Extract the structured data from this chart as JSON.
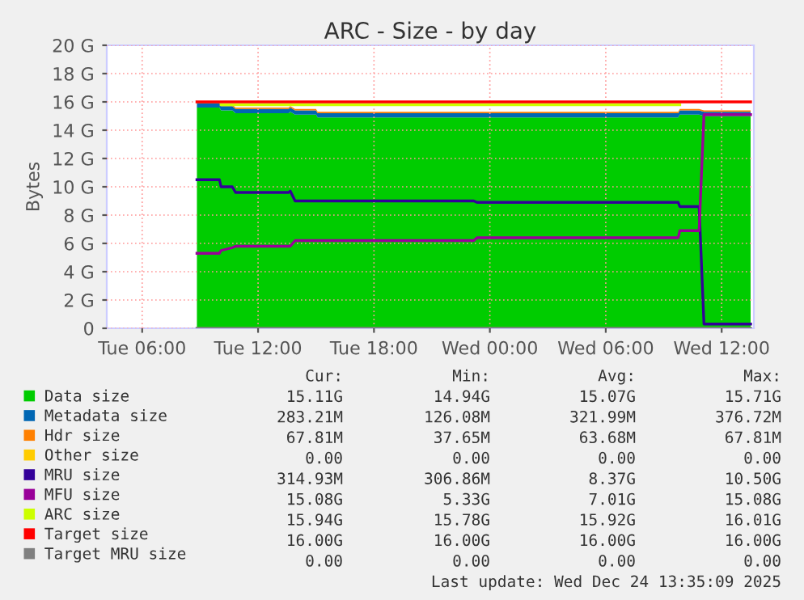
{
  "chart_data": {
    "type": "area",
    "title": "ARC - Size - by day",
    "ylabel": "Bytes",
    "stacked": true,
    "x": [
      "2025-12-23T08:50",
      "2025-12-23T10:00",
      "2025-12-23T10:05",
      "2025-12-23T10:40",
      "2025-12-23T10:50",
      "2025-12-23T13:35",
      "2025-12-23T13:40",
      "2025-12-23T13:55",
      "2025-12-23T15:00",
      "2025-12-23T15:05",
      "2025-12-23T23:10",
      "2025-12-23T23:20",
      "2025-12-24T09:45",
      "2025-12-24T09:50",
      "2025-12-24T10:50",
      "2025-12-24T11:05",
      "2025-12-24T13:30"
    ],
    "series": [
      {
        "name": "Data size",
        "color": "#00cc00",
        "values": [
          15.6,
          15.6,
          15.4,
          15.4,
          15.2,
          15.2,
          15.3,
          15.1,
          15.1,
          14.9,
          14.9,
          14.9,
          14.9,
          15.1,
          15.1,
          15.0,
          15.0
        ]
      },
      {
        "name": "Metadata size",
        "color": "#0066b3",
        "values": [
          0.3,
          0.3,
          0.3,
          0.3,
          0.3,
          0.3,
          0.3,
          0.3,
          0.3,
          0.3,
          0.3,
          0.3,
          0.3,
          0.3,
          0.3,
          0.3,
          0.3
        ]
      },
      {
        "name": "Hdr size",
        "color": "#ff8000",
        "values": [
          0.1,
          0.1,
          0.1,
          0.1,
          0.1,
          0.1,
          0.1,
          0.1,
          0.1,
          0.1,
          0.1,
          0.1,
          0.1,
          0.1,
          0.1,
          0.1,
          0.1
        ]
      },
      {
        "name": "Other size",
        "color": "#ffcc00",
        "values": [
          null,
          null,
          null,
          null,
          null,
          null,
          null,
          null,
          null,
          null,
          null,
          null,
          null,
          null,
          null,
          null,
          null
        ]
      },
      {
        "name": "MRU size",
        "type": "line",
        "color": "#330099",
        "values": [
          10.5,
          10.5,
          10.0,
          10.0,
          9.6,
          9.6,
          9.7,
          9.0,
          9.0,
          9.0,
          9.0,
          8.9,
          8.9,
          8.6,
          8.6,
          0.3,
          0.3
        ]
      },
      {
        "name": "MFU size",
        "type": "line",
        "color": "#990099",
        "values": [
          5.3,
          5.3,
          5.5,
          5.7,
          5.8,
          5.8,
          5.8,
          6.2,
          6.2,
          6.2,
          6.2,
          6.4,
          6.4,
          6.9,
          6.9,
          15.1,
          15.1
        ]
      },
      {
        "name": "ARC size",
        "type": "line",
        "color": "#ccff00",
        "values": [
          null,
          null,
          15.8,
          15.8,
          15.8,
          15.8,
          15.8,
          15.8,
          15.8,
          15.8,
          15.8,
          15.8,
          15.8,
          15.8,
          null,
          null,
          null
        ]
      },
      {
        "name": "Target size",
        "type": "line",
        "color": "#ff0000",
        "values": [
          16,
          16,
          16,
          16,
          16,
          16,
          16,
          16,
          16,
          16,
          16,
          16,
          16,
          16,
          16,
          16,
          16
        ]
      },
      {
        "name": "Target MRU size",
        "type": "line",
        "color": "#808080",
        "values": [
          0,
          0,
          0,
          0,
          0,
          0,
          0,
          0,
          0,
          0,
          0,
          0,
          0,
          0,
          0,
          0,
          0
        ]
      }
    ],
    "xlim": [
      "2025-12-23T04:10",
      "2025-12-24T13:40"
    ],
    "xticks": [
      {
        "value": "2025-12-23T06:00",
        "label": "Tue 06:00"
      },
      {
        "value": "2025-12-23T12:00",
        "label": "Tue 12:00"
      },
      {
        "value": "2025-12-23T18:00",
        "label": "Tue 18:00"
      },
      {
        "value": "2025-12-24T00:00",
        "label": "Wed 00:00"
      },
      {
        "value": "2025-12-24T06:00",
        "label": "Wed 06:00"
      },
      {
        "value": "2025-12-24T12:00",
        "label": "Wed 12:00"
      }
    ],
    "ylim": [
      0,
      20
    ],
    "yticks": [
      0,
      {
        "value": 2,
        "label": "2 G"
      },
      {
        "value": 4,
        "label": "4 G"
      },
      {
        "value": 6,
        "label": "6 G"
      },
      {
        "value": 8,
        "label": "8 G"
      },
      {
        "value": 10,
        "label": "10 G"
      },
      {
        "value": 12,
        "label": "12 G"
      },
      {
        "value": 14,
        "label": "14 G"
      },
      {
        "value": 16,
        "label": "16 G"
      },
      {
        "value": 18,
        "label": "18 G"
      },
      {
        "value": 20,
        "label": "20 G"
      }
    ],
    "grid": true,
    "legend": "bottom",
    "annotations": [
      "Cur:",
      "Min:",
      "Avg:",
      "Max:",
      "15.11G",
      "14.94G",
      "15.07G",
      "15.71G",
      "283.21M",
      "126.08M",
      "321.99M",
      "376.72M",
      "67.81M",
      "37.65M",
      "63.68M",
      "67.81M",
      "0.00",
      "0.00",
      "0.00",
      "0.00",
      "314.93M",
      "306.86M",
      "8.37G",
      "10.50G",
      "15.08G",
      "5.33G",
      "7.01G",
      "15.08G",
      "15.94G",
      "15.78G",
      "15.92G",
      "16.01G",
      "16.00G",
      "16.00G",
      "16.00G",
      "16.00G",
      "0.00",
      "0.00",
      "0.00",
      "0.00",
      "Last update: Wed Dec 24 13:35:09 2025"
    ]
  }
}
